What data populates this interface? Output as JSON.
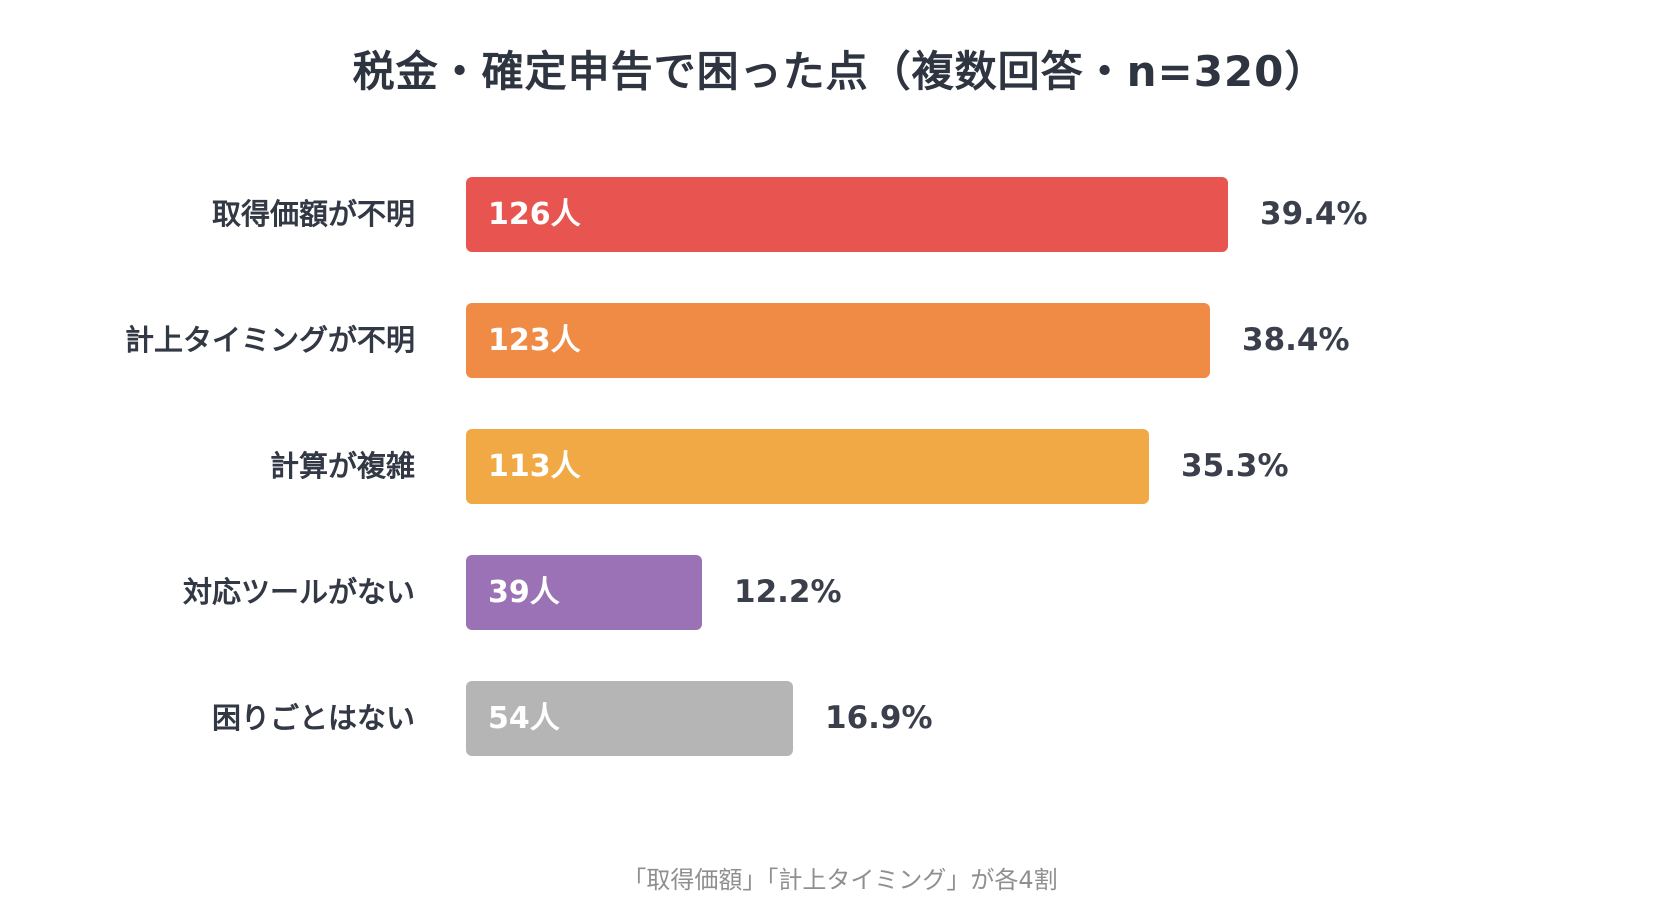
{
  "chart_data": {
    "type": "bar",
    "orientation": "horizontal",
    "title": "税金・確定申告で困った点（複数回答・n=320）",
    "categories": [
      "取得価額が不明",
      "計上タイミングが不明",
      "計算が複雑",
      "対応ツールがない",
      "困りごとはない"
    ],
    "values": [
      126,
      123,
      113,
      39,
      54
    ],
    "value_labels": [
      "126人",
      "123人",
      "113人",
      "39人",
      "54人"
    ],
    "percent_labels": [
      "39.4%",
      "38.4%",
      "35.3%",
      "12.2%",
      "16.9%"
    ],
    "colors": [
      "#e85550",
      "#ef8b45",
      "#f0a945",
      "#9b72b6",
      "#b5b5b5"
    ],
    "xlim": [
      0,
      126
    ],
    "grid": false,
    "legend": "none"
  },
  "footnote": "「取得価額」「計上タイミング」が各4割"
}
